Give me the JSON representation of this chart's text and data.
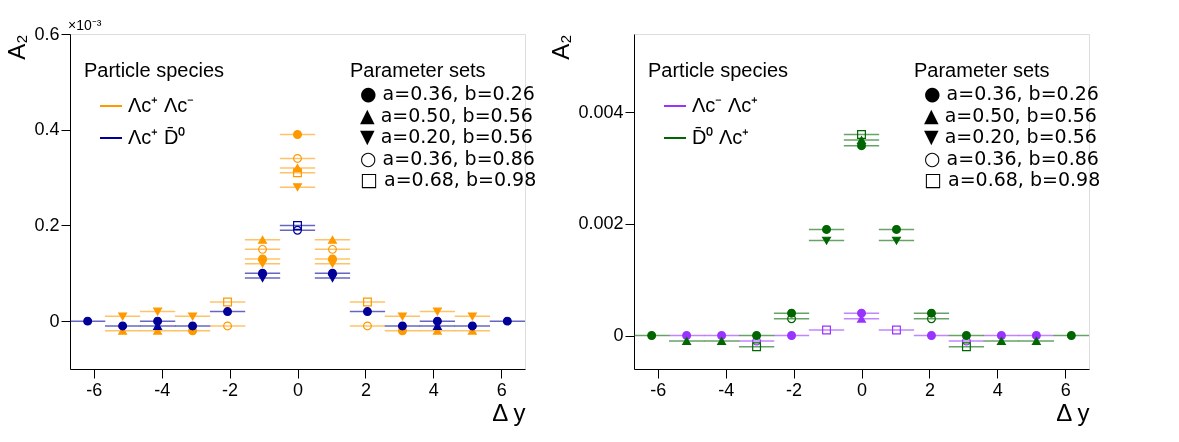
{
  "chart_data": [
    {
      "type": "scatter",
      "xlabel": "Δ y",
      "ylabel": "A₂",
      "xlim": [
        -6.7,
        6.7
      ],
      "ylim": [
        -0.1,
        0.6
      ],
      "xticks": [
        -6,
        -4,
        -2,
        0,
        2,
        4,
        6
      ],
      "yticks": [
        0,
        0.2,
        0.4,
        0.6
      ],
      "legend": "top left",
      "legend_title": "Particle species",
      "annotations": [
        "×10⁻³",
        "Parameter sets",
        "● a=0.36, b=0.26",
        "▲ a=0.50, b=0.56",
        "▼ a=0.20, b=0.56",
        "○ a=0.36, b=0.86",
        "□ a=0.68, b=0.98"
      ],
      "x": [
        -6.18,
        -5.15,
        -4.12,
        -3.09,
        -2.06,
        -1.03,
        0,
        1.03,
        2.06,
        3.09,
        4.12,
        5.15,
        6.18
      ],
      "series": [
        {
          "name": "Λc⁺ Λc⁻",
          "color": "#ff9900",
          "marker": "circle",
          "values": [
            null,
            null,
            null,
            -0.02,
            null,
            0.13,
            0.39,
            0.13,
            null,
            -0.02,
            null,
            null,
            null
          ],
          "xerrors": [
            null,
            null,
            null,
            0.52,
            null,
            0.52,
            0.52,
            0.52,
            null,
            0.52,
            null,
            null,
            null
          ]
        },
        {
          "color": "#ff9900",
          "marker": "triangle",
          "values": [
            null,
            -0.02,
            -0.02,
            null,
            null,
            0.17,
            0.32,
            0.17,
            null,
            null,
            -0.02,
            -0.02,
            null
          ],
          "xerrors": [
            null,
            0.52,
            0.52,
            null,
            null,
            0.52,
            0.52,
            0.52,
            null,
            null,
            0.52,
            0.52,
            null
          ]
        },
        {
          "color": "#ff9900",
          "marker": "triangle",
          "values": [
            null,
            0.01,
            0.02,
            0.01,
            null,
            0.12,
            0.28,
            0.12,
            null,
            0.01,
            0.02,
            0.01,
            null
          ],
          "xerrors": [
            null,
            0.52,
            0.52,
            0.52,
            null,
            0.52,
            0.52,
            0.52,
            null,
            0.52,
            0.52,
            0.52,
            null
          ]
        },
        {
          "color": "#ff9900",
          "marker": "circle",
          "values": [
            null,
            null,
            null,
            null,
            -0.01,
            0.15,
            0.34,
            0.15,
            -0.01,
            null,
            null,
            null,
            null
          ],
          "xerrors": [
            null,
            null,
            null,
            null,
            0.52,
            0.52,
            0.52,
            0.52,
            0.52,
            null,
            null,
            null,
            null
          ]
        },
        {
          "color": "#ff9900",
          "marker": "square",
          "values": [
            null,
            null,
            null,
            null,
            0.04,
            null,
            0.31,
            null,
            0.04,
            null,
            null,
            null,
            null
          ],
          "xerrors": [
            null,
            null,
            null,
            null,
            0.52,
            null,
            0.52,
            null,
            0.52,
            null,
            null,
            null,
            null
          ]
        },
        {
          "name": "Λc⁺ D̄⁰",
          "color": "#000099",
          "marker": "circle",
          "values": [
            0,
            -0.01,
            0,
            -0.01,
            0.02,
            0.1,
            null,
            0.1,
            0.02,
            -0.01,
            0,
            -0.01,
            0
          ],
          "xerrors": [
            0.52,
            0.52,
            0.52,
            0.52,
            0.52,
            0.52,
            null,
            0.52,
            0.52,
            0.52,
            0.52,
            0.52,
            0.52
          ]
        },
        {
          "color": "#000099",
          "marker": "triangle",
          "values": [
            null,
            null,
            -0.01,
            null,
            null,
            null,
            null,
            null,
            null,
            null,
            -0.01,
            null,
            null
          ],
          "xerrors": [
            null,
            null,
            0.52,
            null,
            null,
            null,
            null,
            null,
            null,
            null,
            0.52,
            null,
            null
          ]
        },
        {
          "color": "#000099",
          "marker": "triangle",
          "values": [
            null,
            null,
            null,
            null,
            null,
            0.09,
            null,
            0.09,
            null,
            null,
            null,
            null,
            null
          ],
          "xerrors": [
            null,
            null,
            null,
            null,
            null,
            0.52,
            null,
            0.52,
            null,
            null,
            null,
            null,
            null
          ]
        },
        {
          "color": "#000099",
          "marker": "circle",
          "values": [
            null,
            null,
            null,
            null,
            null,
            null,
            0.19,
            null,
            null,
            null,
            null,
            null,
            null
          ],
          "xerrors": [
            null,
            null,
            null,
            null,
            null,
            null,
            0.52,
            null,
            null,
            null,
            null,
            null,
            null
          ]
        },
        {
          "color": "#000099",
          "marker": "square",
          "values": [
            null,
            null,
            null,
            null,
            null,
            null,
            0.2,
            null,
            null,
            null,
            null,
            null,
            null
          ],
          "xerrors": [
            null,
            null,
            null,
            null,
            null,
            null,
            0.52,
            null,
            null,
            null,
            null,
            null,
            null
          ]
        }
      ]
    },
    {
      "type": "scatter",
      "xlabel": "Δ y",
      "ylabel": "A₂",
      "xlim": [
        -6.7,
        6.7
      ],
      "ylim": [
        -0.0006,
        0.0054
      ],
      "xticks": [
        -6,
        -4,
        -2,
        0,
        2,
        4,
        6
      ],
      "yticks": [
        0,
        0.002,
        0.004
      ],
      "legend": "top left",
      "legend_title": "Particle species",
      "annotations": [
        "Parameter sets",
        "● a=0.36, b=0.26",
        "▲ a=0.50, b=0.56",
        "▼ a=0.20, b=0.56",
        "○ a=0.36, b=0.86",
        "□ a=0.68, b=0.98"
      ],
      "x": [
        -6.18,
        -5.15,
        -4.12,
        -3.09,
        -2.06,
        -1.03,
        0,
        1.03,
        2.06,
        3.09,
        4.12,
        5.15,
        6.18
      ],
      "series": [
        {
          "name": "Λc⁻ Λc⁺",
          "color": "#9933ff",
          "marker": "circle",
          "values": [
            null,
            0,
            0,
            null,
            0,
            null,
            0.0004,
            null,
            0,
            null,
            0,
            0,
            null
          ],
          "xerrors": [
            null,
            0.52,
            0.52,
            null,
            0.52,
            null,
            0.52,
            null,
            0.52,
            null,
            0.52,
            0.52,
            null
          ]
        },
        {
          "color": "#9933ff",
          "marker": "triangle",
          "values": [
            null,
            null,
            null,
            null,
            null,
            null,
            0.0003,
            null,
            null,
            null,
            null,
            null,
            null
          ],
          "xerrors": [
            null,
            null,
            null,
            null,
            null,
            null,
            0.52,
            null,
            null,
            null,
            null,
            null,
            null
          ]
        },
        {
          "color": "#9933ff",
          "marker": "triangle",
          "values": [
            null,
            null,
            null,
            null,
            null,
            null,
            null,
            null,
            null,
            null,
            null,
            null,
            null
          ]
        },
        {
          "color": "#9933ff",
          "marker": "circle",
          "values": [
            null,
            null,
            null,
            -0.0001,
            null,
            null,
            null,
            null,
            null,
            -0.0001,
            null,
            null,
            null
          ],
          "xerrors": [
            null,
            null,
            null,
            0.52,
            null,
            null,
            null,
            null,
            null,
            0.52,
            null,
            null,
            null
          ]
        },
        {
          "color": "#9933ff",
          "marker": "square",
          "values": [
            null,
            null,
            null,
            null,
            null,
            0.0001,
            null,
            0.0001,
            null,
            null,
            null,
            null,
            null
          ],
          "xerrors": [
            null,
            null,
            null,
            null,
            null,
            0.52,
            null,
            0.52,
            null,
            null,
            null,
            null,
            null
          ]
        },
        {
          "name": "D̄⁰ Λc⁺",
          "color": "#006600",
          "marker": "circle",
          "values": [
            0,
            null,
            null,
            0,
            0.0004,
            0.0019,
            0.0034,
            0.0019,
            0.0004,
            0,
            null,
            null,
            0
          ],
          "xerrors": [
            0.52,
            null,
            null,
            0.52,
            0.52,
            0.52,
            0.52,
            0.52,
            0.52,
            0.52,
            null,
            null,
            0.52
          ]
        },
        {
          "color": "#006600",
          "marker": "triangle",
          "values": [
            null,
            -0.0001,
            -0.0001,
            null,
            null,
            null,
            0.0035,
            null,
            null,
            null,
            -0.0001,
            -0.0001,
            null
          ],
          "xerrors": [
            null,
            0.52,
            0.52,
            null,
            null,
            null,
            0.52,
            null,
            null,
            null,
            0.52,
            0.52,
            null
          ]
        },
        {
          "color": "#006600",
          "marker": "triangle",
          "values": [
            null,
            null,
            null,
            null,
            null,
            0.0017,
            null,
            0.0017,
            null,
            null,
            null,
            null,
            null
          ],
          "xerrors": [
            null,
            null,
            null,
            null,
            null,
            0.52,
            null,
            0.52,
            null,
            null,
            null,
            null,
            null
          ]
        },
        {
          "color": "#006600",
          "marker": "circle",
          "values": [
            null,
            null,
            null,
            null,
            0.0003,
            null,
            null,
            null,
            0.0003,
            null,
            null,
            null,
            null
          ],
          "xerrors": [
            null,
            null,
            null,
            null,
            0.52,
            null,
            null,
            null,
            0.52,
            null,
            null,
            null,
            null
          ]
        },
        {
          "color": "#006600",
          "marker": "square",
          "values": [
            null,
            null,
            null,
            -0.0002,
            null,
            null,
            0.0036,
            null,
            null,
            -0.0002,
            null,
            null,
            null
          ],
          "xerrors": [
            null,
            null,
            null,
            0.52,
            null,
            null,
            0.52,
            null,
            null,
            0.52,
            null,
            null,
            null
          ]
        }
      ]
    }
  ]
}
